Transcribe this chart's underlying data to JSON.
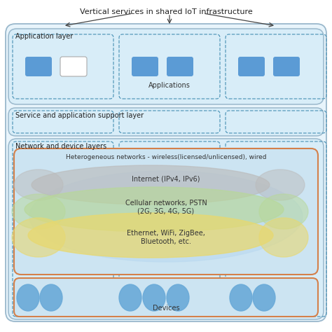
{
  "title": "Vertical services in shared IoT infrastructure",
  "bg_color": "#ffffff",
  "app_layer_label": "Application layer",
  "service_layer_label": "Service and application support layer",
  "network_layer_label": "Network and device layers",
  "hetero_label": "Heterogeneous networks - wireless(licensed/unlicensed), wired",
  "internet_label": "Internet (IPv4, IPv6)",
  "cellular_label": "Cellular networks, PSTN\n(2G, 3G, 4G, 5G)",
  "ethernet_label": "Ethernet, WiFi, ZigBee,\nBluetooth, etc.",
  "applications_label": "Applications",
  "devices_label": "Devices",
  "outer_edge": "#9ab8cc",
  "outer_fill": "#e8f4fb",
  "layer_edge": "#9ab8cc",
  "layer_fill": "#d8edf8",
  "dashed_edge": "#5599bb",
  "orange_edge": "#d4804a",
  "orange_fill": "#cce4f2",
  "blue_rect_fill": "#5b9bd5",
  "white_rect_fill": "#ffffff",
  "circle_fill": "#6aaad8",
  "gray_blob": "#bbbbbb",
  "green_blob": "#b8d898",
  "yellow_blob": "#e8d870",
  "light_blue_blob": "#b8d8f0"
}
